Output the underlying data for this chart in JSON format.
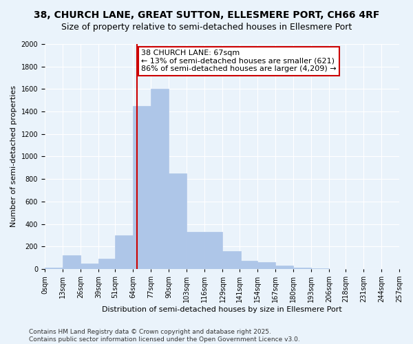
{
  "title": "38, CHURCH LANE, GREAT SUTTON, ELLESMERE PORT, CH66 4RF",
  "subtitle": "Size of property relative to semi-detached houses in Ellesmere Port",
  "xlabel": "Distribution of semi-detached houses by size in Ellesmere Port",
  "ylabel": "Number of semi-detached properties",
  "footnote": "Contains HM Land Registry data © Crown copyright and database right 2025.\nContains public sector information licensed under the Open Government Licence v3.0.",
  "bar_left_edges": [
    0,
    13,
    26,
    39,
    51,
    64,
    77,
    90,
    103,
    116,
    129,
    141,
    154,
    167,
    180,
    193,
    206,
    218,
    231,
    244
  ],
  "bar_heights": [
    10,
    120,
    50,
    90,
    300,
    1450,
    1600,
    850,
    330,
    330,
    160,
    75,
    60,
    30,
    10,
    3,
    2,
    1,
    0,
    0
  ],
  "bin_width": 13,
  "tick_positions": [
    0,
    13,
    26,
    39,
    51,
    64,
    77,
    90,
    103,
    116,
    129,
    141,
    154,
    167,
    180,
    193,
    206,
    218,
    231,
    244,
    257
  ],
  "tick_labels": [
    "0sqm",
    "13sqm",
    "26sqm",
    "39sqm",
    "51sqm",
    "64sqm",
    "77sqm",
    "90sqm",
    "103sqm",
    "116sqm",
    "129sqm",
    "141sqm",
    "154sqm",
    "167sqm",
    "180sqm",
    "193sqm",
    "206sqm",
    "218sqm",
    "231sqm",
    "244sqm",
    "257sqm"
  ],
  "bar_color": "#aec6e8",
  "bar_edge_color": "#aec6e8",
  "property_line_x": 67,
  "annotation_text": "38 CHURCH LANE: 67sqm\n← 13% of semi-detached houses are smaller (621)\n86% of semi-detached houses are larger (4,209) →",
  "annotation_box_color": "#ffffff",
  "annotation_box_edge_color": "#cc0000",
  "line_color": "#cc0000",
  "xlim": [
    0,
    257
  ],
  "ylim": [
    0,
    2000
  ],
  "yticks": [
    0,
    200,
    400,
    600,
    800,
    1000,
    1200,
    1400,
    1600,
    1800,
    2000
  ],
  "background_color": "#eaf3fb",
  "grid_color": "#ffffff",
  "title_fontsize": 10,
  "subtitle_fontsize": 9,
  "axis_label_fontsize": 8,
  "tick_fontsize": 7,
  "annotation_fontsize": 8,
  "footnote_fontsize": 6.5
}
